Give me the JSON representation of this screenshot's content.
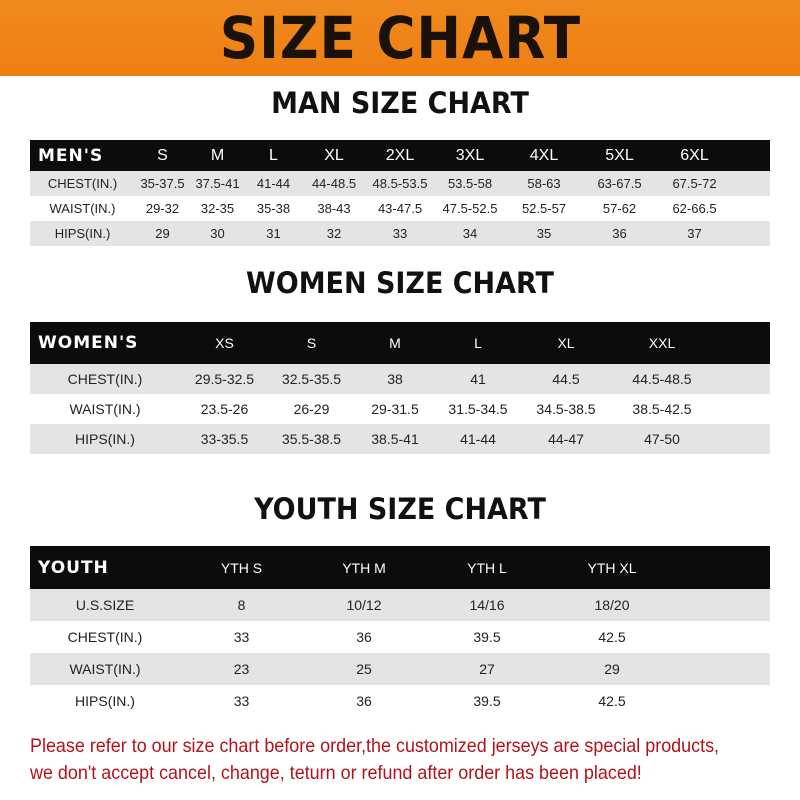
{
  "banner_title": "SIZE CHART",
  "colors": {
    "banner": "#ee7f12",
    "header_row": "#0c0c0c",
    "stripe": "#e4e4e4",
    "note": "#b3121c"
  },
  "men": {
    "title": "MAN SIZE CHART",
    "header": [
      "MEN'S",
      "S",
      "M",
      "L",
      "XL",
      "2XL",
      "3XL",
      "4XL",
      "5XL",
      "6XL"
    ],
    "rows": [
      [
        "CHEST(IN.)",
        "35-37.5",
        "37.5-41",
        "41-44",
        "44-48.5",
        "48.5-53.5",
        "53.5-58",
        "58-63",
        "63-67.5",
        "67.5-72"
      ],
      [
        "WAIST(IN.)",
        "29-32",
        "32-35",
        "35-38",
        "38-43",
        "43-47.5",
        "47.5-52.5",
        "52.5-57",
        "57-62",
        "62-66.5"
      ],
      [
        "HIPS(IN.)",
        "29",
        "30",
        "31",
        "32",
        "33",
        "34",
        "35",
        "36",
        "37"
      ]
    ]
  },
  "women": {
    "title": "WOMEN SIZE CHART",
    "header": [
      "WOMEN'S",
      "XS",
      "S",
      "M",
      "L",
      "XL",
      "XXL"
    ],
    "rows": [
      [
        "CHEST(IN.)",
        "29.5-32.5",
        "32.5-35.5",
        "38",
        "41",
        "44.5",
        "44.5-48.5"
      ],
      [
        "WAIST(IN.)",
        "23.5-26",
        "26-29",
        "29-31.5",
        "31.5-34.5",
        "34.5-38.5",
        "38.5-42.5"
      ],
      [
        "HIPS(IN.)",
        "33-35.5",
        "35.5-38.5",
        "38.5-41",
        "41-44",
        "44-47",
        "47-50"
      ]
    ]
  },
  "youth": {
    "title": "YOUTH SIZE CHART",
    "header": [
      "YOUTH",
      "YTH S",
      "YTH M",
      "YTH L",
      "YTH XL"
    ],
    "rows": [
      [
        "U.S.SIZE",
        "8",
        "10/12",
        "14/16",
        "18/20"
      ],
      [
        "CHEST(IN.)",
        "33",
        "36",
        "39.5",
        "42.5"
      ],
      [
        "WAIST(IN.)",
        "23",
        "25",
        "27",
        "29"
      ],
      [
        "HIPS(IN.)",
        "33",
        "36",
        "39.5",
        "42.5"
      ]
    ]
  },
  "note": {
    "line1": "Please refer to our size chart before order,the customized jerseys are special products,",
    "line2": "we don't accept cancel, change, teturn or refund after order has been placed!"
  }
}
